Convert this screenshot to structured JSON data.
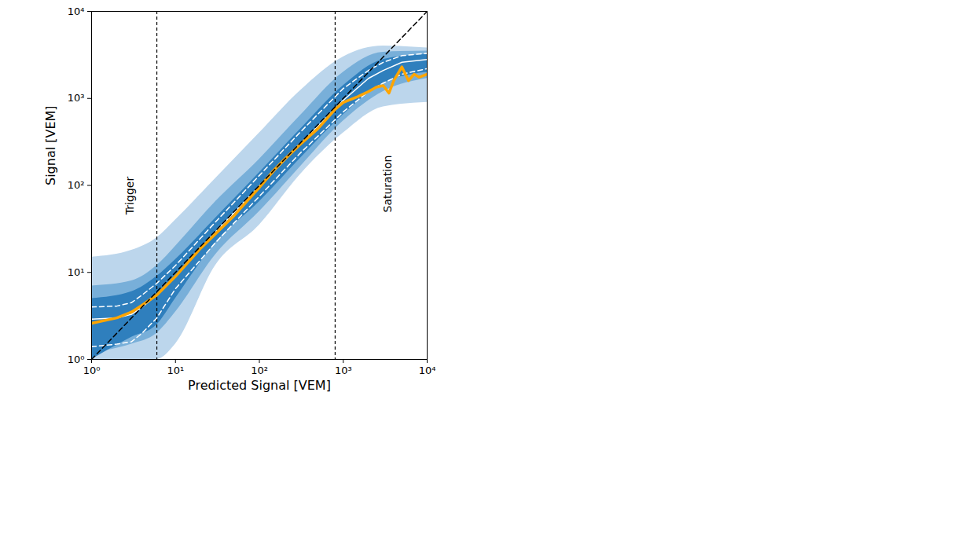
{
  "chart_data": {
    "type": "density",
    "x_label": "Predicted Signal [VEM]",
    "y_label": "Signal [VEM]",
    "log": true,
    "xlim": [
      1,
      10000
    ],
    "ylim": [
      1,
      10000
    ],
    "xticks": [
      {
        "value": 1,
        "label": "10⁰"
      },
      {
        "value": 10,
        "label": "10¹"
      },
      {
        "value": 100,
        "label": "10²"
      },
      {
        "value": 1000,
        "label": "10³"
      },
      {
        "value": 10000,
        "label": "10⁴"
      }
    ],
    "yticks": [
      {
        "value": 1,
        "label": "10⁰"
      },
      {
        "value": 10,
        "label": "10¹"
      },
      {
        "value": 100,
        "label": "10²"
      },
      {
        "value": 1000,
        "label": "10³"
      },
      {
        "value": 10000,
        "label": "10⁴"
      }
    ],
    "series": [
      {
        "type": "band",
        "color": "#bcd6ec",
        "x": [
          1,
          3,
          6,
          10,
          30,
          100,
          300,
          1000,
          3000,
          10000
        ],
        "lower": [
          1,
          1,
          1,
          1.5,
          12,
          35,
          130,
          400,
          800,
          900
        ],
        "upper": [
          15,
          18,
          25,
          40,
          120,
          400,
          1200,
          3000,
          4000,
          3800
        ]
      },
      {
        "type": "band",
        "color": "#78afd9",
        "x": [
          1,
          3,
          6,
          10,
          30,
          100,
          300,
          1000,
          3000,
          10000
        ],
        "lower": [
          1.2,
          1.5,
          2,
          3.5,
          16,
          50,
          160,
          550,
          1200,
          1700
        ],
        "upper": [
          7,
          8,
          12,
          20,
          65,
          200,
          620,
          2000,
          3400,
          3500
        ]
      },
      {
        "type": "band",
        "color": "#2f7fbd",
        "x": [
          1,
          3,
          6,
          10,
          30,
          100,
          300,
          1000,
          3000,
          10000
        ],
        "lower": [
          1,
          1.8,
          2.5,
          5,
          22,
          65,
          200,
          650,
          1500,
          2000
        ],
        "upper": [
          5,
          6,
          9,
          14,
          42,
          140,
          430,
          1400,
          2800,
          3200
        ]
      },
      {
        "type": "line",
        "color": "#ffffff",
        "line_style": "dashed",
        "x": [
          1,
          2,
          3,
          4,
          6,
          10,
          30,
          100,
          300,
          1000,
          2000,
          3000,
          5000,
          10000
        ],
        "values": [
          4,
          4.1,
          4.5,
          5.5,
          7.5,
          12,
          38,
          130,
          400,
          1300,
          2100,
          2600,
          3100,
          3300
        ]
      },
      {
        "type": "line",
        "color": "#ffffff",
        "line_style": "solid",
        "x": [
          1,
          2,
          3,
          4,
          6,
          10,
          30,
          100,
          300,
          1000,
          2000,
          3000,
          5000,
          10000
        ],
        "values": [
          2.9,
          3.0,
          3.3,
          4,
          5.5,
          9,
          29,
          98,
          290,
          950,
          1700,
          2100,
          2600,
          2800
        ]
      },
      {
        "type": "line",
        "color": "#ffffff",
        "line_style": "dashed",
        "x": [
          1,
          2,
          3,
          4,
          6,
          10,
          30,
          100,
          300,
          1000,
          2000,
          3000,
          5000,
          10000
        ],
        "values": [
          1.4,
          1.5,
          1.6,
          2,
          3,
          6.5,
          22,
          75,
          230,
          700,
          1200,
          1500,
          1900,
          2200
        ]
      },
      {
        "type": "line",
        "color": "#ffa500",
        "line_style": "solid",
        "x": [
          1,
          2,
          3,
          4,
          6,
          10,
          20,
          50,
          100,
          150,
          200,
          300,
          500,
          800,
          1000,
          1500,
          2000,
          2500,
          3000,
          3500,
          4000,
          5000,
          6000,
          7000,
          8000,
          10000
        ],
        "values": [
          2.6,
          3.0,
          3.5,
          4.2,
          5.5,
          9,
          19,
          45,
          95,
          150,
          200,
          290,
          450,
          750,
          900,
          1050,
          1200,
          1350,
          1400,
          1150,
          1600,
          2300,
          1600,
          1900,
          1750,
          1900
        ]
      },
      {
        "type": "line",
        "color": "#000000",
        "line_style": "dashed",
        "x": [
          1,
          10000
        ],
        "values": [
          1,
          10000
        ]
      }
    ],
    "annotations": [
      {
        "x": 6,
        "text": "Trigger"
      },
      {
        "x": 800,
        "text": "Saturation"
      }
    ]
  }
}
